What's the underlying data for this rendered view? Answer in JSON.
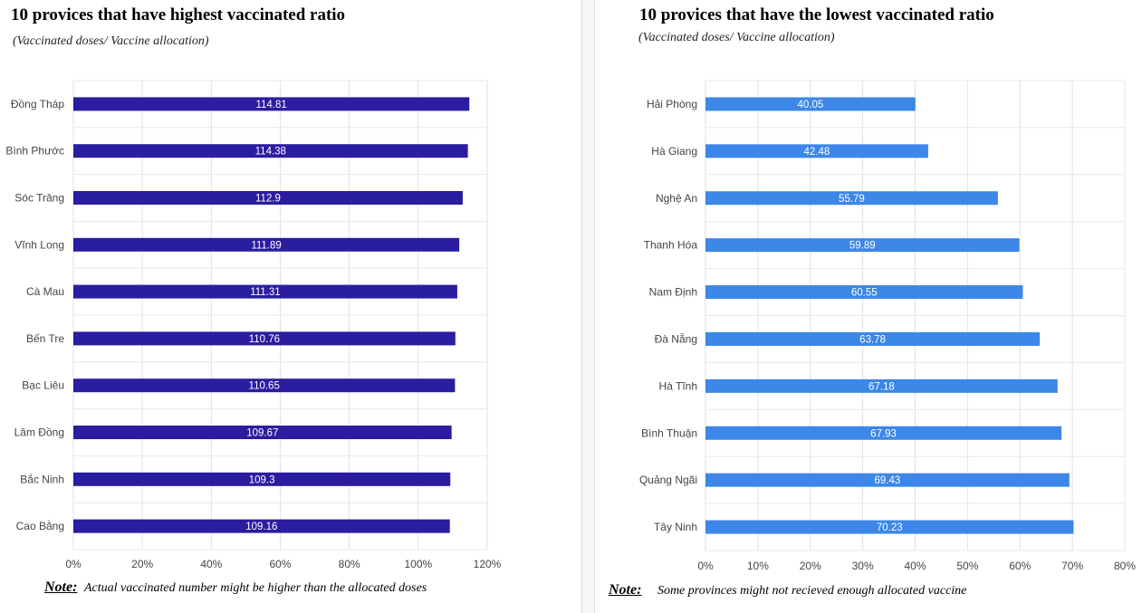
{
  "chart_data": [
    {
      "type": "bar",
      "orientation": "horizontal",
      "title": "10 provices that have highest vaccinated ratio",
      "subtitle": "(Vaccinated doses/ Vaccine allocation)",
      "categories": [
        "Đồng Tháp",
        "Bình Phước",
        "Sóc Trăng",
        "Vĩnh Long",
        "Cà Mau",
        "Bến Tre",
        "Bạc Liêu",
        "Lâm Đồng",
        "Bắc Ninh",
        "Cao Bằng"
      ],
      "values": [
        114.81,
        114.38,
        112.9,
        111.89,
        111.31,
        110.76,
        110.65,
        109.67,
        109.3,
        109.16
      ],
      "data_labels": [
        "114.81",
        "114.38",
        "112.9",
        "111.89",
        "111.31",
        "110.76",
        "110.65",
        "109.67",
        "109.3",
        "109.16"
      ],
      "xlim": [
        0,
        120
      ],
      "xticks": [
        0,
        20,
        40,
        60,
        80,
        100,
        120
      ],
      "xtick_labels": [
        "0%",
        "20%",
        "40%",
        "60%",
        "80%",
        "100%",
        "120%"
      ],
      "grid": true,
      "legend": "none",
      "bar_color": "#2a1da0",
      "note_label": "Note:",
      "note_text": "Actual vaccinated number might be higher than the allocated doses"
    },
    {
      "type": "bar",
      "orientation": "horizontal",
      "title": "10 provices that have the lowest vaccinated ratio",
      "subtitle": "(Vaccinated doses/ Vaccine allocation)",
      "categories": [
        "Hải Phòng",
        "Hà Giang",
        "Nghệ An",
        "Thanh Hóa",
        "Nam Định",
        "Đà Nẵng",
        "Hà Tĩnh",
        "Bình Thuận",
        "Quảng Ngãi",
        "Tây Ninh"
      ],
      "values": [
        40.05,
        42.48,
        55.79,
        59.89,
        60.55,
        63.78,
        67.18,
        67.93,
        69.43,
        70.23
      ],
      "data_labels": [
        "40.05",
        "42.48",
        "55.79",
        "59.89",
        "60.55",
        "63.78",
        "67.18",
        "67.93",
        "69.43",
        "70.23"
      ],
      "xlim": [
        0,
        80
      ],
      "xticks": [
        0,
        10,
        20,
        30,
        40,
        50,
        60,
        70,
        80
      ],
      "xtick_labels": [
        "0%",
        "10%",
        "20%",
        "30%",
        "40%",
        "50%",
        "60%",
        "70%",
        "80%"
      ],
      "grid": true,
      "legend": "none",
      "bar_color": "#3c87e8",
      "note_label": "Note:",
      "note_text": "Some provinces might not recieved enough allocated vaccine"
    }
  ]
}
